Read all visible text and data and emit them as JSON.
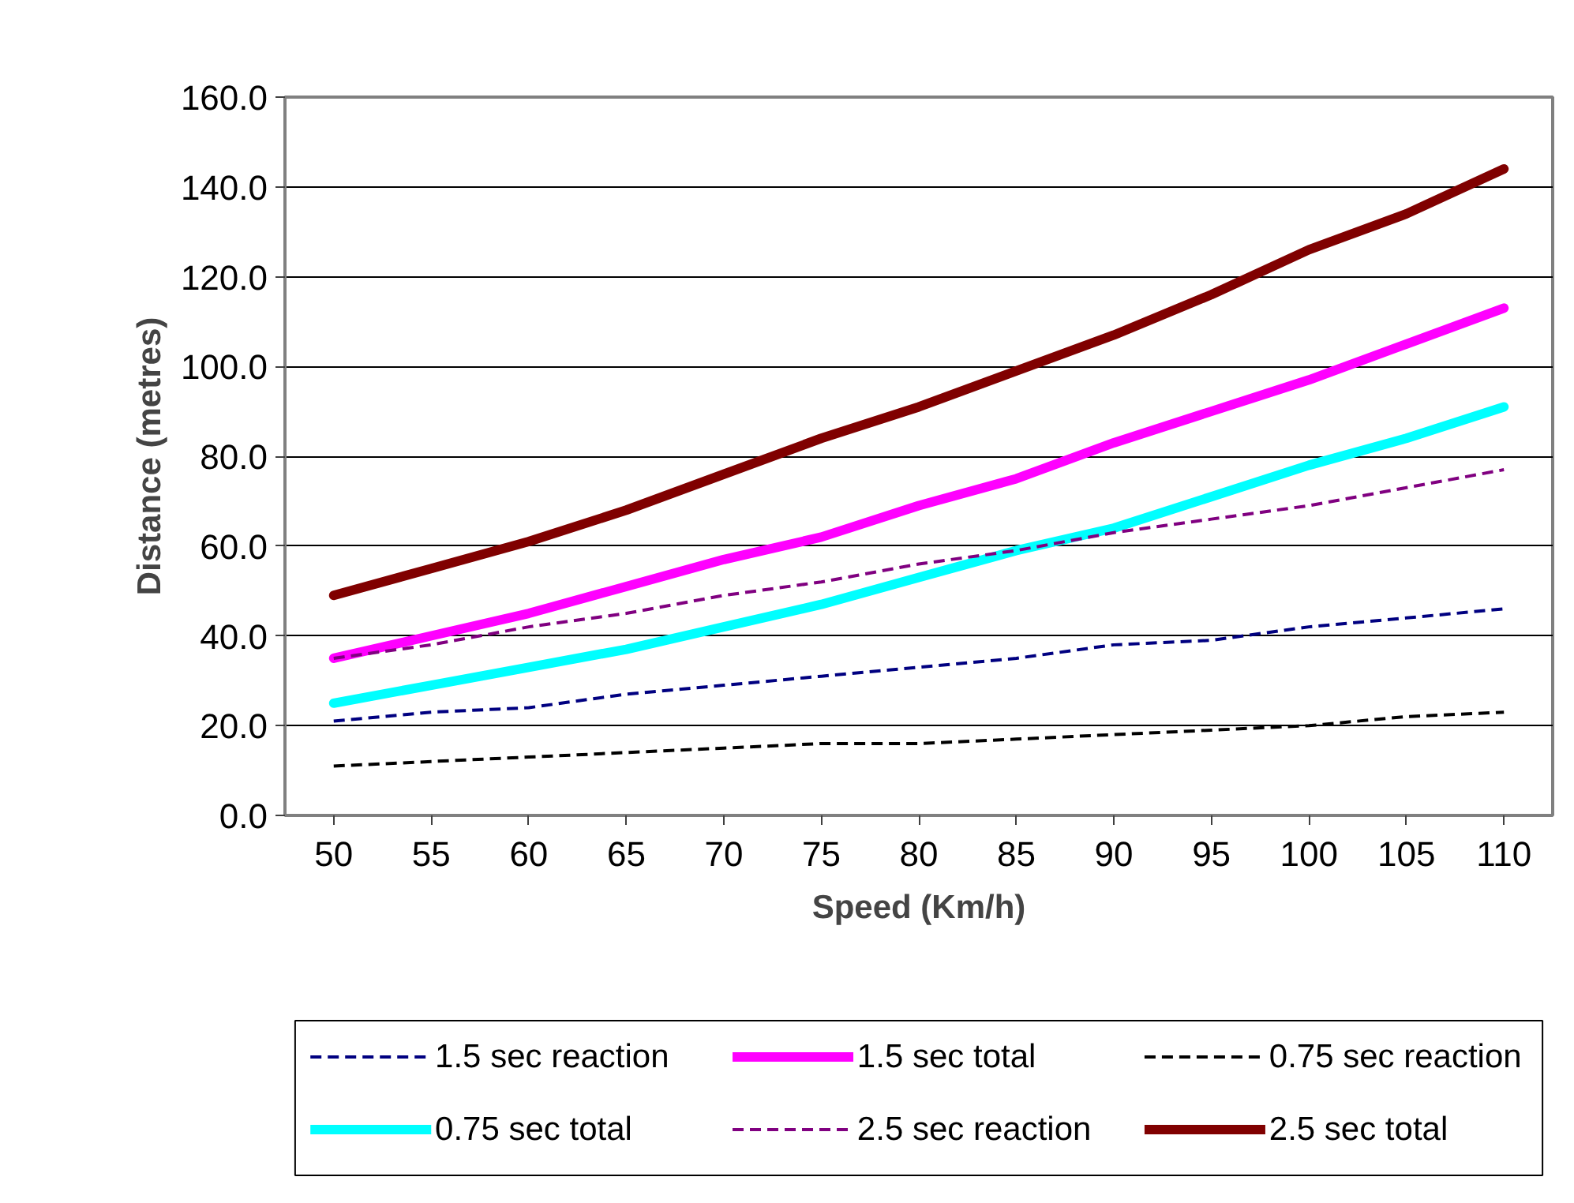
{
  "chart_data": {
    "type": "line",
    "xlabel": "Speed (Km/h)",
    "ylabel": "Distance (metres)",
    "categories": [
      "50",
      "55",
      "60",
      "65",
      "70",
      "75",
      "80",
      "85",
      "90",
      "95",
      "100",
      "105",
      "110"
    ],
    "ylim": [
      0,
      160
    ],
    "yticks": [
      {
        "value": 0,
        "label": "0.0"
      },
      {
        "value": 20,
        "label": "20.0"
      },
      {
        "value": 40,
        "label": "40.0"
      },
      {
        "value": 60,
        "label": "60.0"
      },
      {
        "value": 80,
        "label": "80.0"
      },
      {
        "value": 100,
        "label": "100.0"
      },
      {
        "value": 120,
        "label": "120.0"
      },
      {
        "value": 140,
        "label": "140.0"
      },
      {
        "value": 160,
        "label": "160.0"
      }
    ],
    "grid": "y",
    "legend": "bottom",
    "marker": "none",
    "series": [
      {
        "name": "1.5 sec reaction",
        "color": "#000080",
        "line_style": "dashed",
        "values": [
          21,
          23,
          24,
          27,
          29,
          31,
          33,
          35,
          38,
          39,
          42,
          44,
          46
        ]
      },
      {
        "name": "1.5 sec total",
        "color": "#ff00ff",
        "line_style": "solid",
        "values": [
          35,
          40,
          45,
          51,
          57,
          62,
          69,
          75,
          83,
          90,
          97,
          105,
          113
        ]
      },
      {
        "name": "0.75 sec reaction",
        "color": "#000000",
        "line_style": "dashed",
        "values": [
          11,
          12,
          13,
          14,
          15,
          16,
          16,
          17,
          18,
          19,
          20,
          22,
          23
        ]
      },
      {
        "name": "0.75 sec total",
        "color": "#00ffff",
        "line_style": "solid",
        "values": [
          25,
          29,
          33,
          37,
          42,
          47,
          53,
          59,
          64,
          71,
          78,
          84,
          91
        ]
      },
      {
        "name": "2.5 sec reaction",
        "color": "#800080",
        "line_style": "dashed",
        "values": [
          35,
          38,
          42,
          45,
          49,
          52,
          56,
          59,
          63,
          66,
          69,
          73,
          77
        ]
      },
      {
        "name": "2.5 sec total",
        "color": "#800000",
        "line_style": "solid",
        "values": [
          49,
          55,
          61,
          68,
          76,
          84,
          91,
          99,
          107,
          116,
          126,
          134,
          144
        ]
      }
    ]
  }
}
